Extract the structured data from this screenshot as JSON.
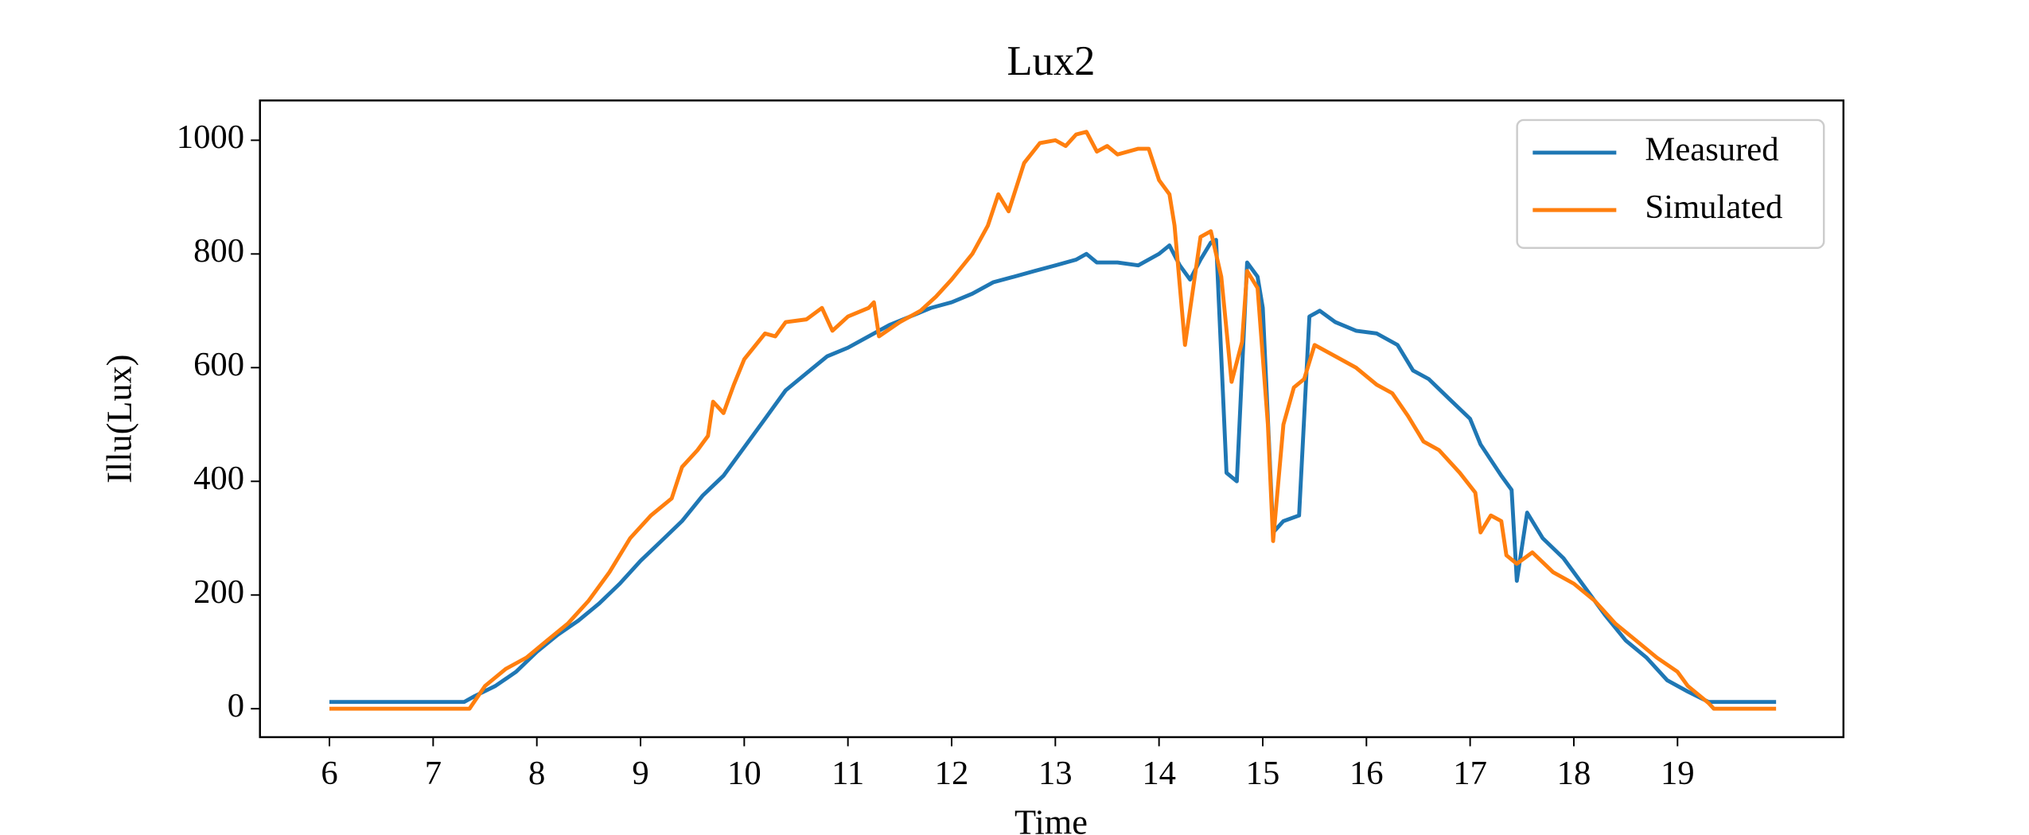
{
  "chart_data": {
    "type": "line",
    "title": "Lux2",
    "x_label": "Time",
    "y_label": "Illu(Lux)",
    "xlim": [
      5.33,
      20.6
    ],
    "ylim": [
      -50,
      1070
    ],
    "xticks": [
      6,
      7,
      8,
      9,
      10,
      11,
      12,
      13,
      14,
      15,
      16,
      17,
      18,
      19
    ],
    "yticks": [
      0,
      200,
      400,
      600,
      800,
      1000
    ],
    "legend": "upper right",
    "series": [
      {
        "name": "Measured",
        "color": "#1f77b4",
        "x": [
          6.0,
          7.3,
          7.4,
          7.6,
          7.8,
          8.0,
          8.2,
          8.4,
          8.6,
          8.8,
          9.0,
          9.2,
          9.4,
          9.6,
          9.8,
          10.0,
          10.2,
          10.4,
          10.6,
          10.8,
          11.0,
          11.2,
          11.4,
          11.6,
          11.8,
          12.0,
          12.2,
          12.4,
          12.6,
          12.8,
          13.0,
          13.2,
          13.3,
          13.4,
          13.6,
          13.8,
          14.0,
          14.1,
          14.2,
          14.3,
          14.4,
          14.5,
          14.55,
          14.65,
          14.75,
          14.85,
          14.95,
          15.0,
          15.1,
          15.2,
          15.35,
          15.45,
          15.55,
          15.7,
          15.9,
          16.1,
          16.3,
          16.45,
          16.6,
          16.8,
          17.0,
          17.1,
          17.3,
          17.4,
          17.45,
          17.55,
          17.7,
          17.9,
          18.1,
          18.3,
          18.5,
          18.7,
          18.9,
          19.1,
          19.3,
          19.95
        ],
        "values": [
          12,
          12,
          22,
          40,
          65,
          100,
          130,
          155,
          185,
          220,
          260,
          295,
          330,
          375,
          410,
          460,
          510,
          560,
          590,
          620,
          635,
          655,
          675,
          690,
          705,
          715,
          730,
          750,
          760,
          770,
          780,
          790,
          800,
          785,
          785,
          780,
          800,
          815,
          780,
          755,
          790,
          820,
          825,
          415,
          400,
          785,
          760,
          705,
          310,
          330,
          340,
          690,
          700,
          680,
          665,
          660,
          640,
          595,
          580,
          545,
          510,
          465,
          410,
          385,
          225,
          345,
          300,
          265,
          215,
          165,
          120,
          90,
          50,
          30,
          12,
          12
        ]
      },
      {
        "name": "Simulated",
        "color": "#ff7f0e",
        "x": [
          6.0,
          7.35,
          7.5,
          7.7,
          7.9,
          8.1,
          8.3,
          8.5,
          8.7,
          8.9,
          9.1,
          9.3,
          9.4,
          9.55,
          9.65,
          9.7,
          9.8,
          9.9,
          10.0,
          10.2,
          10.3,
          10.4,
          10.6,
          10.75,
          10.85,
          11.0,
          11.2,
          11.25,
          11.3,
          11.5,
          11.7,
          11.85,
          12.0,
          12.2,
          12.35,
          12.45,
          12.55,
          12.7,
          12.85,
          13.0,
          13.1,
          13.2,
          13.3,
          13.4,
          13.5,
          13.6,
          13.8,
          13.9,
          14.0,
          14.1,
          14.15,
          14.25,
          14.4,
          14.5,
          14.6,
          14.7,
          14.8,
          14.85,
          14.95,
          15.05,
          15.1,
          15.2,
          15.3,
          15.4,
          15.5,
          15.7,
          15.9,
          16.1,
          16.25,
          16.4,
          16.55,
          16.7,
          16.9,
          17.05,
          17.1,
          17.2,
          17.3,
          17.35,
          17.45,
          17.6,
          17.8,
          18.0,
          18.2,
          18.4,
          18.6,
          18.8,
          19.0,
          19.1,
          19.3,
          19.35,
          19.95
        ],
        "values": [
          0,
          0,
          40,
          70,
          90,
          120,
          150,
          190,
          240,
          300,
          340,
          370,
          425,
          455,
          480,
          540,
          520,
          570,
          615,
          660,
          655,
          680,
          685,
          705,
          665,
          690,
          705,
          715,
          655,
          680,
          700,
          725,
          755,
          800,
          850,
          905,
          875,
          960,
          995,
          1000,
          990,
          1010,
          1015,
          980,
          990,
          975,
          985,
          985,
          930,
          905,
          850,
          640,
          830,
          840,
          760,
          575,
          645,
          770,
          740,
          500,
          295,
          500,
          565,
          580,
          640,
          620,
          600,
          570,
          555,
          515,
          470,
          455,
          415,
          380,
          310,
          340,
          330,
          270,
          255,
          275,
          240,
          220,
          190,
          150,
          120,
          90,
          65,
          40,
          10,
          0,
          0
        ]
      }
    ]
  }
}
